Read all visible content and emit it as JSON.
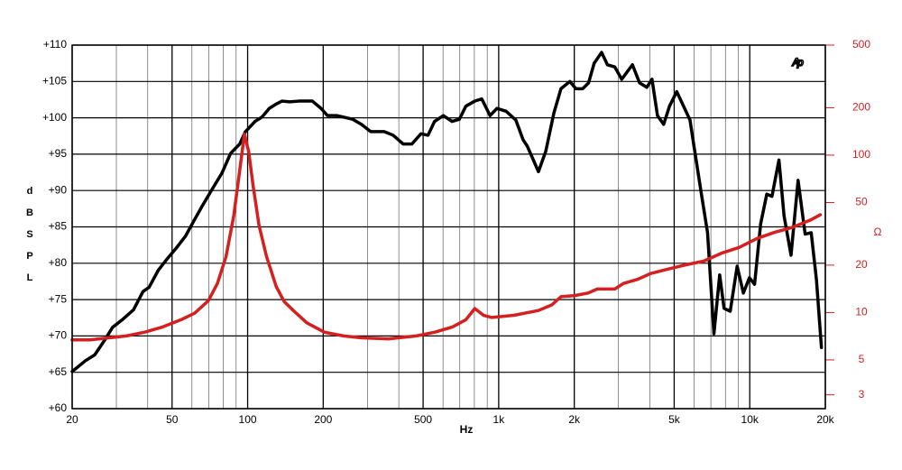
{
  "chart_data": {
    "type": "line",
    "logo": "Ap",
    "xlabel": "Hz",
    "ylabel": "dB SPL",
    "y2label": "Ω",
    "xlog": true,
    "y2log": true,
    "grid": true,
    "xlim": [
      20,
      20000
    ],
    "xticks": [
      20,
      50,
      100,
      200,
      500,
      {
        "value": 1000,
        "label": "1k"
      },
      {
        "value": 2000,
        "label": "2k"
      },
      {
        "value": 5000,
        "label": "5k"
      },
      {
        "value": 10000,
        "label": "10k"
      },
      {
        "value": 20000,
        "label": "20k"
      }
    ],
    "xminor": [
      30,
      40,
      60,
      70,
      80,
      90,
      300,
      400,
      600,
      700,
      800,
      900,
      3000,
      4000,
      6000,
      7000,
      8000,
      9000
    ],
    "ylim": [
      60,
      110
    ],
    "yticks": [
      {
        "value": 60,
        "label": "+60"
      },
      {
        "value": 65,
        "label": "+65"
      },
      {
        "value": 70,
        "label": "+70"
      },
      {
        "value": 75,
        "label": "+75"
      },
      {
        "value": 80,
        "label": "+80"
      },
      {
        "value": 85,
        "label": "+85"
      },
      {
        "value": 90,
        "label": "+90"
      },
      {
        "value": 95,
        "label": "+95"
      },
      {
        "value": 100,
        "label": "+100"
      },
      {
        "value": 105,
        "label": "+105"
      },
      {
        "value": 110,
        "label": "+110"
      }
    ],
    "y2lim": [
      2.45,
      500
    ],
    "y2ticks": [
      3,
      5,
      10,
      20,
      50,
      100,
      200,
      500
    ],
    "y2color": "#d42020",
    "series": [
      {
        "color": "#000000",
        "x": [
          20,
          22.6,
          24.6,
          26.8,
          29,
          31.6,
          35.1,
          38.3,
          40.5,
          44,
          47.8,
          52,
          56.5,
          61,
          66,
          72,
          79,
          85.5,
          93,
          98,
          107,
          114,
          122,
          130,
          137,
          147,
          160,
          181,
          196,
          208,
          227,
          241,
          262,
          284,
          309,
          350,
          380,
          416,
          451,
          490,
          523,
          555,
          602,
          652,
          697,
          740,
          803,
          856,
          924,
          984,
          1070,
          1170,
          1250,
          1300,
          1440,
          1540,
          1660,
          1770,
          1920,
          2030,
          2160,
          2280,
          2400,
          2570,
          2710,
          2900,
          3090,
          3410,
          3640,
          3890,
          4080,
          4290,
          4540,
          4790,
          5120,
          5450,
          5780,
          6020,
          6420,
          6790,
          7200,
          7590,
          7900,
          8360,
          8910,
          9430,
          9970,
          10450,
          11050,
          11690,
          12260,
          13070,
          13700,
          14600,
          15580,
          16620,
          17570,
          18440,
          19300
        ],
        "values": [
          65.1,
          66.6,
          67.4,
          69.3,
          71.2,
          72.2,
          73.6,
          76.1,
          76.7,
          79,
          80.6,
          82.1,
          83.7,
          85.8,
          87.9,
          90.1,
          92.4,
          95.1,
          96.4,
          98.1,
          99.5,
          100.1,
          101.3,
          101.9,
          102.3,
          102.2,
          102.3,
          102.3,
          101.3,
          100.3,
          100.3,
          100.1,
          99.8,
          99.1,
          98.1,
          98.1,
          97.6,
          96.4,
          96.4,
          97.8,
          97.6,
          99.5,
          100.3,
          99.5,
          99.8,
          101.6,
          102.3,
          102.6,
          100.3,
          101.3,
          100.9,
          99.7,
          97,
          96.1,
          92.6,
          95.4,
          100.7,
          104,
          105,
          104,
          104,
          104.8,
          107.5,
          109,
          107.3,
          107,
          105.3,
          107.3,
          104.8,
          104.2,
          105.3,
          100.3,
          99.1,
          101.6,
          103.6,
          101.6,
          99.7,
          95.7,
          89.5,
          84.2,
          70.3,
          78.4,
          73.8,
          73.4,
          79.6,
          75.9,
          78,
          77.1,
          85.4,
          89.5,
          89.2,
          94.2,
          86.5,
          81.1,
          91.4,
          84,
          84.2,
          77.7,
          68.4
        ]
      },
      {
        "color": "#d42020",
        "axis": "y2",
        "x": [
          20,
          23.6,
          27.9,
          32.9,
          38.9,
          45.9,
          54.3,
          61.5,
          69.8,
          75.8,
          82,
          88,
          92.4,
          97.1,
          101,
          105,
          111,
          119,
          130,
          140,
          152,
          172,
          202,
          241,
          284,
          364,
          470,
          557,
          655,
          740,
          803,
          870,
          940,
          1150,
          1440,
          1630,
          1770,
          2000,
          2270,
          2470,
          2900,
          3140,
          3560,
          4030,
          4740,
          5570,
          6550,
          7710,
          9070,
          10670,
          12550,
          14750,
          17340,
          19100
        ],
        "values": [
          6.7,
          6.7,
          6.9,
          7.1,
          7.5,
          8.1,
          9,
          9.9,
          11.9,
          15.3,
          22.6,
          41,
          74,
          136,
          105,
          65,
          35.8,
          22.6,
          14.6,
          11.7,
          10.3,
          8.6,
          7.5,
          7.1,
          6.9,
          6.8,
          7.1,
          7.5,
          8.1,
          9,
          10.6,
          9.6,
          9.3,
          9.6,
          10.3,
          11.2,
          12.6,
          12.8,
          13.3,
          14.1,
          14.1,
          15.3,
          16.2,
          17.7,
          18.9,
          20.1,
          21.2,
          23.8,
          25.9,
          29.5,
          32.3,
          34.7,
          38.5,
          41.8
        ]
      }
    ]
  }
}
